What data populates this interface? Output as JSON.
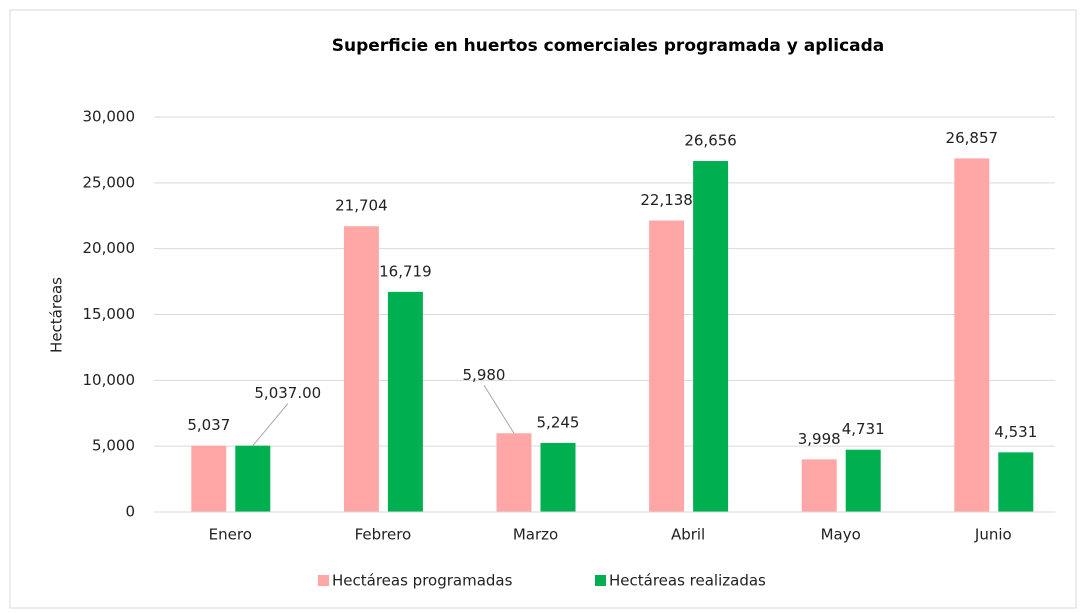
{
  "chart_data": {
    "type": "bar",
    "title": "Superficie en huertos comerciales  programada y aplicada",
    "y_label": "Hectáreas",
    "categories": [
      "Enero",
      "Febrero",
      "Marzo",
      "Abril",
      "Mayo",
      "Junio"
    ],
    "series": [
      {
        "name": "Hectáreas programadas",
        "color": "#ffa7a7",
        "values": [
          5037,
          21704,
          5980,
          22138,
          3998,
          26857
        ],
        "value_labels": [
          "5,037",
          "21,704",
          "5,980",
          "22,138",
          "3,998",
          "26,857"
        ]
      },
      {
        "name": "Hectáreas realizadas",
        "color": "#00b050",
        "values": [
          5037,
          16719,
          5245,
          26656,
          4731,
          4531
        ],
        "value_labels": [
          "5,037.00",
          "16,719",
          "5,245",
          "26,656",
          "4,731",
          "4,531"
        ]
      }
    ],
    "ylim": [
      0,
      30000
    ],
    "yticks": [
      0,
      {
        "value": 5000,
        "label": "5,000"
      },
      {
        "value": 10000,
        "label": "10,000"
      },
      {
        "value": 15000,
        "label": "15,000"
      },
      {
        "value": 20000,
        "label": "20,000"
      },
      {
        "value": 25000,
        "label": "25,000"
      },
      {
        "value": 30000,
        "label": "30,000"
      }
    ],
    "grid": true,
    "legend": "bottom"
  }
}
